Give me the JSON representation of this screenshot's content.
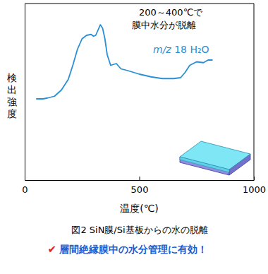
{
  "chart_data": {
    "type": "line",
    "x_label": "温度(℃)",
    "y_label": "検出強度",
    "caption": "図2 SiN膜/Si基板からの水の脱離",
    "annotations": [
      "200～400℃で",
      "膜中水分が脱離"
    ],
    "note_mark": "✔",
    "note": "層間絶縁膜中の水分管理に有効！",
    "x": [
      50,
      80,
      100,
      130,
      160,
      190,
      210,
      230,
      250,
      270,
      290,
      300,
      310,
      320,
      330,
      340,
      350,
      360,
      375,
      400,
      420,
      450,
      500,
      550,
      600,
      650,
      680,
      700,
      720,
      750,
      780,
      800,
      820
    ],
    "series": [
      {
        "name": "m/z 18 H₂O",
        "color": "#2a8fd4",
        "values": [
          46,
          46,
          46.5,
          47.5,
          51,
          57,
          65,
          74,
          80,
          82,
          82.5,
          81.5,
          82,
          85,
          88,
          86,
          80,
          71,
          65,
          66,
          63,
          62,
          60,
          58.5,
          57.5,
          57.5,
          58,
          61,
          65,
          67,
          66.5,
          68,
          68
        ]
      }
    ],
    "xlim": [
      0,
      1000
    ],
    "xticks": [
      0,
      500,
      1000
    ],
    "ylim": [
      0,
      100
    ],
    "tick_labels": "x"
  }
}
